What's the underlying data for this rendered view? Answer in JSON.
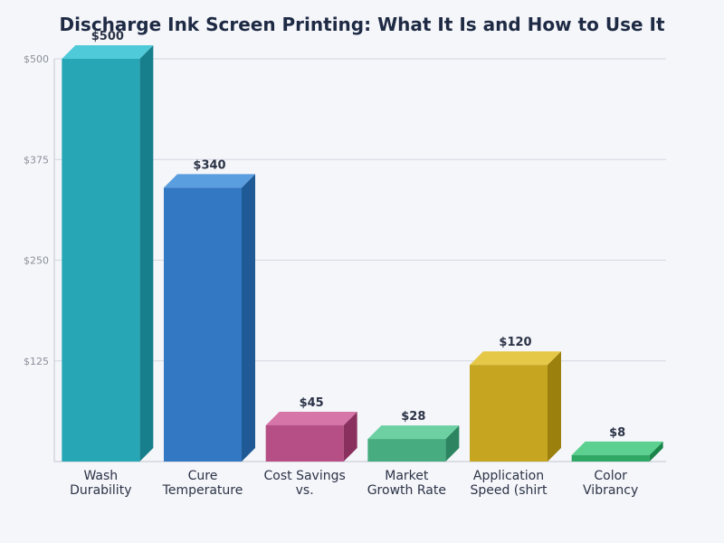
{
  "chart_data": {
    "type": "bar",
    "title": "Discharge Ink Screen Printing: What It Is and How to Use It",
    "xlabel": "",
    "ylabel": "",
    "ylim": [
      0,
      500
    ],
    "yticks": [
      125,
      250,
      375,
      500
    ],
    "ytick_labels": [
      "$125",
      "$250",
      "$375",
      "$500"
    ],
    "grid": true,
    "categories": [
      [
        "Wash",
        "Durability"
      ],
      [
        "Cure",
        "Temperature"
      ],
      [
        "Cost Savings",
        "vs."
      ],
      [
        "Market",
        "Growth Rate"
      ],
      [
        "Application",
        "Speed (shirt"
      ],
      [
        "Color",
        "Vibrancy"
      ]
    ],
    "values": [
      500,
      340,
      45,
      28,
      120,
      8
    ],
    "value_labels": [
      "$500",
      "$340",
      "$45",
      "$28",
      "$120",
      "$8"
    ],
    "colors": [
      {
        "front": "#27a7b6",
        "top": "#4fcad8",
        "side": "#167f8b"
      },
      {
        "front": "#3378c2",
        "top": "#5b9ee0",
        "side": "#1f5a96"
      },
      {
        "front": "#b54f85",
        "top": "#d575a8",
        "side": "#8a305f"
      },
      {
        "front": "#47ac7f",
        "top": "#6cd0a3",
        "side": "#2c8560"
      },
      {
        "front": "#c6a620",
        "top": "#e6c848",
        "side": "#9b800d"
      },
      {
        "front": "#2fa866",
        "top": "#5bd08f",
        "side": "#1a8449"
      }
    ]
  }
}
